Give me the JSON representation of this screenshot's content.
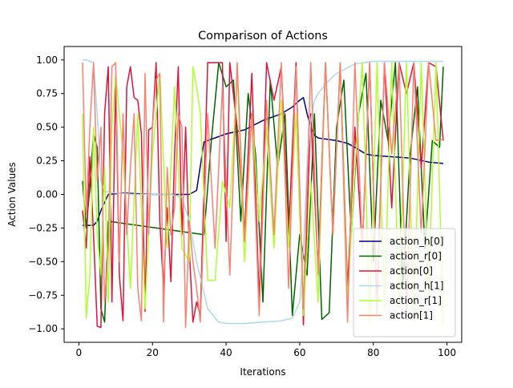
{
  "chart_data": {
    "type": "line",
    "title": "Comparison of Actions",
    "xlabel": "Iterations",
    "ylabel": "Action Values",
    "xlim": [
      -4,
      104
    ],
    "ylim": [
      -1.1,
      1.1
    ],
    "xticks": [
      0,
      20,
      40,
      60,
      80,
      100
    ],
    "xtick_labels": [
      "0",
      "20",
      "40",
      "60",
      "80",
      "100"
    ],
    "yticks": [
      -1.0,
      -0.75,
      -0.5,
      -0.25,
      0.0,
      0.25,
      0.5,
      0.75,
      1.0
    ],
    "ytick_labels": [
      "−1.00",
      "−0.75",
      "−0.50",
      "−0.25",
      "0.00",
      "0.25",
      "0.50",
      "0.75",
      "1.00"
    ],
    "grid": false,
    "legend_position": "lower-right",
    "series": [
      {
        "name": "action_h[0]",
        "color": "#000080",
        "x": [
          1,
          2,
          4,
          5,
          6,
          8,
          12,
          20,
          30,
          32,
          34,
          40,
          45,
          50,
          55,
          58,
          60,
          61,
          62,
          63,
          64,
          65,
          70,
          73,
          75,
          78,
          80,
          90,
          95,
          99
        ],
        "y": [
          -0.23,
          -0.23,
          -0.23,
          -0.2,
          -0.12,
          0.0,
          0.01,
          0.0,
          0.0,
          0.03,
          0.39,
          0.45,
          0.48,
          0.55,
          0.6,
          0.65,
          0.7,
          0.72,
          0.6,
          0.5,
          0.44,
          0.42,
          0.4,
          0.38,
          0.35,
          0.3,
          0.29,
          0.27,
          0.24,
          0.23
        ]
      },
      {
        "name": "action_r[0]",
        "color": "#006400",
        "x": [
          1,
          2,
          3,
          4,
          5,
          6,
          7,
          8,
          34,
          36,
          38,
          40,
          42,
          44,
          46,
          48,
          50,
          52,
          54,
          56,
          58,
          60,
          62,
          64,
          66,
          68,
          70,
          72,
          74,
          76,
          78,
          80,
          82,
          84,
          86,
          88,
          90,
          92,
          94,
          96,
          98,
          99
        ],
        "y": [
          0.1,
          -0.25,
          0.05,
          0.45,
          0.35,
          -0.85,
          -0.95,
          -0.2,
          -0.3,
          0.4,
          0.98,
          0.8,
          0.85,
          -0.2,
          0.75,
          0.3,
          -0.8,
          0.85,
          0.2,
          0.6,
          -0.9,
          -0.3,
          -0.6,
          0.6,
          -0.93,
          -0.88,
          0.5,
          0.85,
          -0.3,
          0.6,
          0.9,
          -0.5,
          0.7,
          0.4,
          0.98,
          -0.7,
          0.3,
          0.8,
          -0.4,
          0.4,
          0.35,
          0.95
        ]
      },
      {
        "name": "action[0]",
        "color": "#DC143C",
        "x": [
          1,
          2,
          3,
          4,
          5,
          6,
          7,
          8,
          9,
          10,
          11,
          12,
          13,
          14,
          15,
          16,
          17,
          18,
          19,
          20,
          21,
          22,
          23,
          24,
          25,
          26,
          27,
          28,
          29,
          30,
          31,
          32,
          33,
          35,
          37,
          39,
          40,
          41,
          43,
          45,
          47,
          49,
          51,
          53,
          55,
          57,
          59,
          61,
          63,
          65,
          67,
          69,
          71,
          73,
          75,
          77,
          79,
          81,
          83,
          85,
          87,
          89,
          91,
          93,
          95,
          97,
          99
        ],
        "y": [
          -0.12,
          -0.4,
          0.28,
          -0.3,
          -0.98,
          -0.99,
          0.6,
          0.95,
          -0.8,
          0.85,
          -0.6,
          -0.94,
          0.8,
          0.95,
          0.72,
          0.7,
          0.45,
          -0.87,
          0.48,
          0.5,
          0.98,
          -0.2,
          -0.7,
          -0.1,
          -0.65,
          0.3,
          0.95,
          -0.3,
          0.5,
          -0.4,
          -0.95,
          -0.8,
          -0.9,
          0.98,
          0.98,
          0.98,
          -0.35,
          0.98,
          0.5,
          -0.3,
          0.9,
          -0.8,
          0.98,
          0.7,
          0.95,
          -0.3,
          0.98,
          -0.97,
          0.6,
          -0.55,
          0.98,
          -0.3,
          0.98,
          -0.7,
          0.5,
          -0.4,
          0.98,
          -0.85,
          0.98,
          -0.1,
          0.98,
          0.75,
          0.98,
          0.2,
          0.98,
          0.95,
          0.4
        ]
      },
      {
        "name": "action_h[1]",
        "color": "#ADD8E6",
        "x": [
          1,
          2,
          3,
          4,
          5,
          6,
          7,
          8,
          10,
          15,
          20,
          25,
          28,
          30,
          32,
          35,
          38,
          40,
          45,
          50,
          55,
          58,
          60,
          61,
          62,
          63,
          64,
          65,
          68,
          70,
          75,
          80,
          90,
          99
        ],
        "y": [
          1.0,
          1.0,
          0.99,
          0.98,
          0.6,
          0.1,
          0.02,
          0.02,
          0.01,
          0.0,
          0.0,
          0.0,
          -0.02,
          -0.2,
          -0.5,
          -0.85,
          -0.95,
          -0.96,
          -0.96,
          -0.95,
          -0.94,
          -0.92,
          -0.8,
          -0.4,
          0.2,
          0.55,
          0.7,
          0.75,
          0.85,
          0.9,
          0.97,
          0.99,
          0.99,
          0.99
        ]
      },
      {
        "name": "action_r[1]",
        "color": "#ADFF2F",
        "x": [
          1,
          2,
          3,
          4,
          5,
          6,
          7,
          8,
          9,
          10,
          12,
          14,
          16,
          18,
          20,
          22,
          24,
          26,
          28,
          30,
          31,
          32,
          33,
          35,
          37,
          39,
          41,
          43,
          45,
          47,
          49,
          51,
          53,
          55,
          57,
          59,
          61,
          63,
          65,
          67,
          69,
          71,
          73,
          75,
          77,
          79,
          81,
          83,
          85,
          87,
          89,
          91,
          93,
          95,
          97,
          99
        ],
        "y": [
          0.6,
          -0.92,
          -0.6,
          0.5,
          -0.3,
          -0.6,
          0.2,
          -0.8,
          0.5,
          0.9,
          0.3,
          -0.7,
          0.6,
          -0.85,
          0.3,
          0.9,
          -0.4,
          0.8,
          -0.4,
          -0.5,
          0.95,
          0.8,
          0.6,
          -0.64,
          -0.64,
          0.1,
          -0.1,
          0.9,
          -0.5,
          0.6,
          -0.2,
          0.5,
          -0.4,
          0.7,
          -0.4,
          0.6,
          -0.9,
          0.1,
          -0.8,
          0.98,
          -0.3,
          0.98,
          -0.8,
          0.2,
          0.98,
          -0.95,
          0.98,
          -0.85,
          0.98,
          -0.85,
          0.98,
          -0.95,
          0.98,
          -0.75,
          0.98,
          -0.98
        ]
      },
      {
        "name": "action[1]",
        "color": "#FA8072",
        "x": [
          1,
          2,
          3,
          4,
          5,
          6,
          7,
          8,
          9,
          10,
          11,
          12,
          13,
          14,
          15,
          16,
          17,
          18,
          19,
          20,
          21,
          22,
          23,
          24,
          25,
          26,
          27,
          28,
          29,
          30,
          31,
          32,
          33,
          35,
          37,
          39,
          41,
          43,
          45,
          47,
          49,
          51,
          53,
          55,
          57,
          59,
          61,
          63,
          65,
          67,
          69,
          71,
          73,
          75,
          77,
          79,
          81,
          83,
          85,
          87,
          89,
          91,
          93,
          95,
          97,
          99
        ],
        "y": [
          0.98,
          -0.15,
          0.5,
          0.98,
          0.1,
          0.5,
          -0.8,
          -0.4,
          0.95,
          0.98,
          -0.5,
          0.6,
          -0.3,
          0.2,
          0.6,
          -0.7,
          -0.94,
          0.9,
          -0.3,
          0.5,
          0.85,
          0.9,
          -0.95,
          0.2,
          -0.3,
          -0.1,
          0.6,
          0.5,
          -0.99,
          -0.2,
          -0.5,
          -0.7,
          -0.95,
          0.6,
          -0.4,
          0.8,
          -0.6,
          0.98,
          -0.35,
          0.6,
          -0.9,
          0.7,
          -0.3,
          0.98,
          -0.7,
          0.95,
          -0.85,
          0.98,
          -0.6,
          0.98,
          -0.3,
          0.98,
          -0.95,
          0.98,
          -0.4,
          0.98,
          -0.9,
          0.98,
          0.3,
          0.98,
          -0.9,
          0.98,
          -0.3,
          0.98,
          0.4,
          0.41
        ]
      }
    ]
  }
}
